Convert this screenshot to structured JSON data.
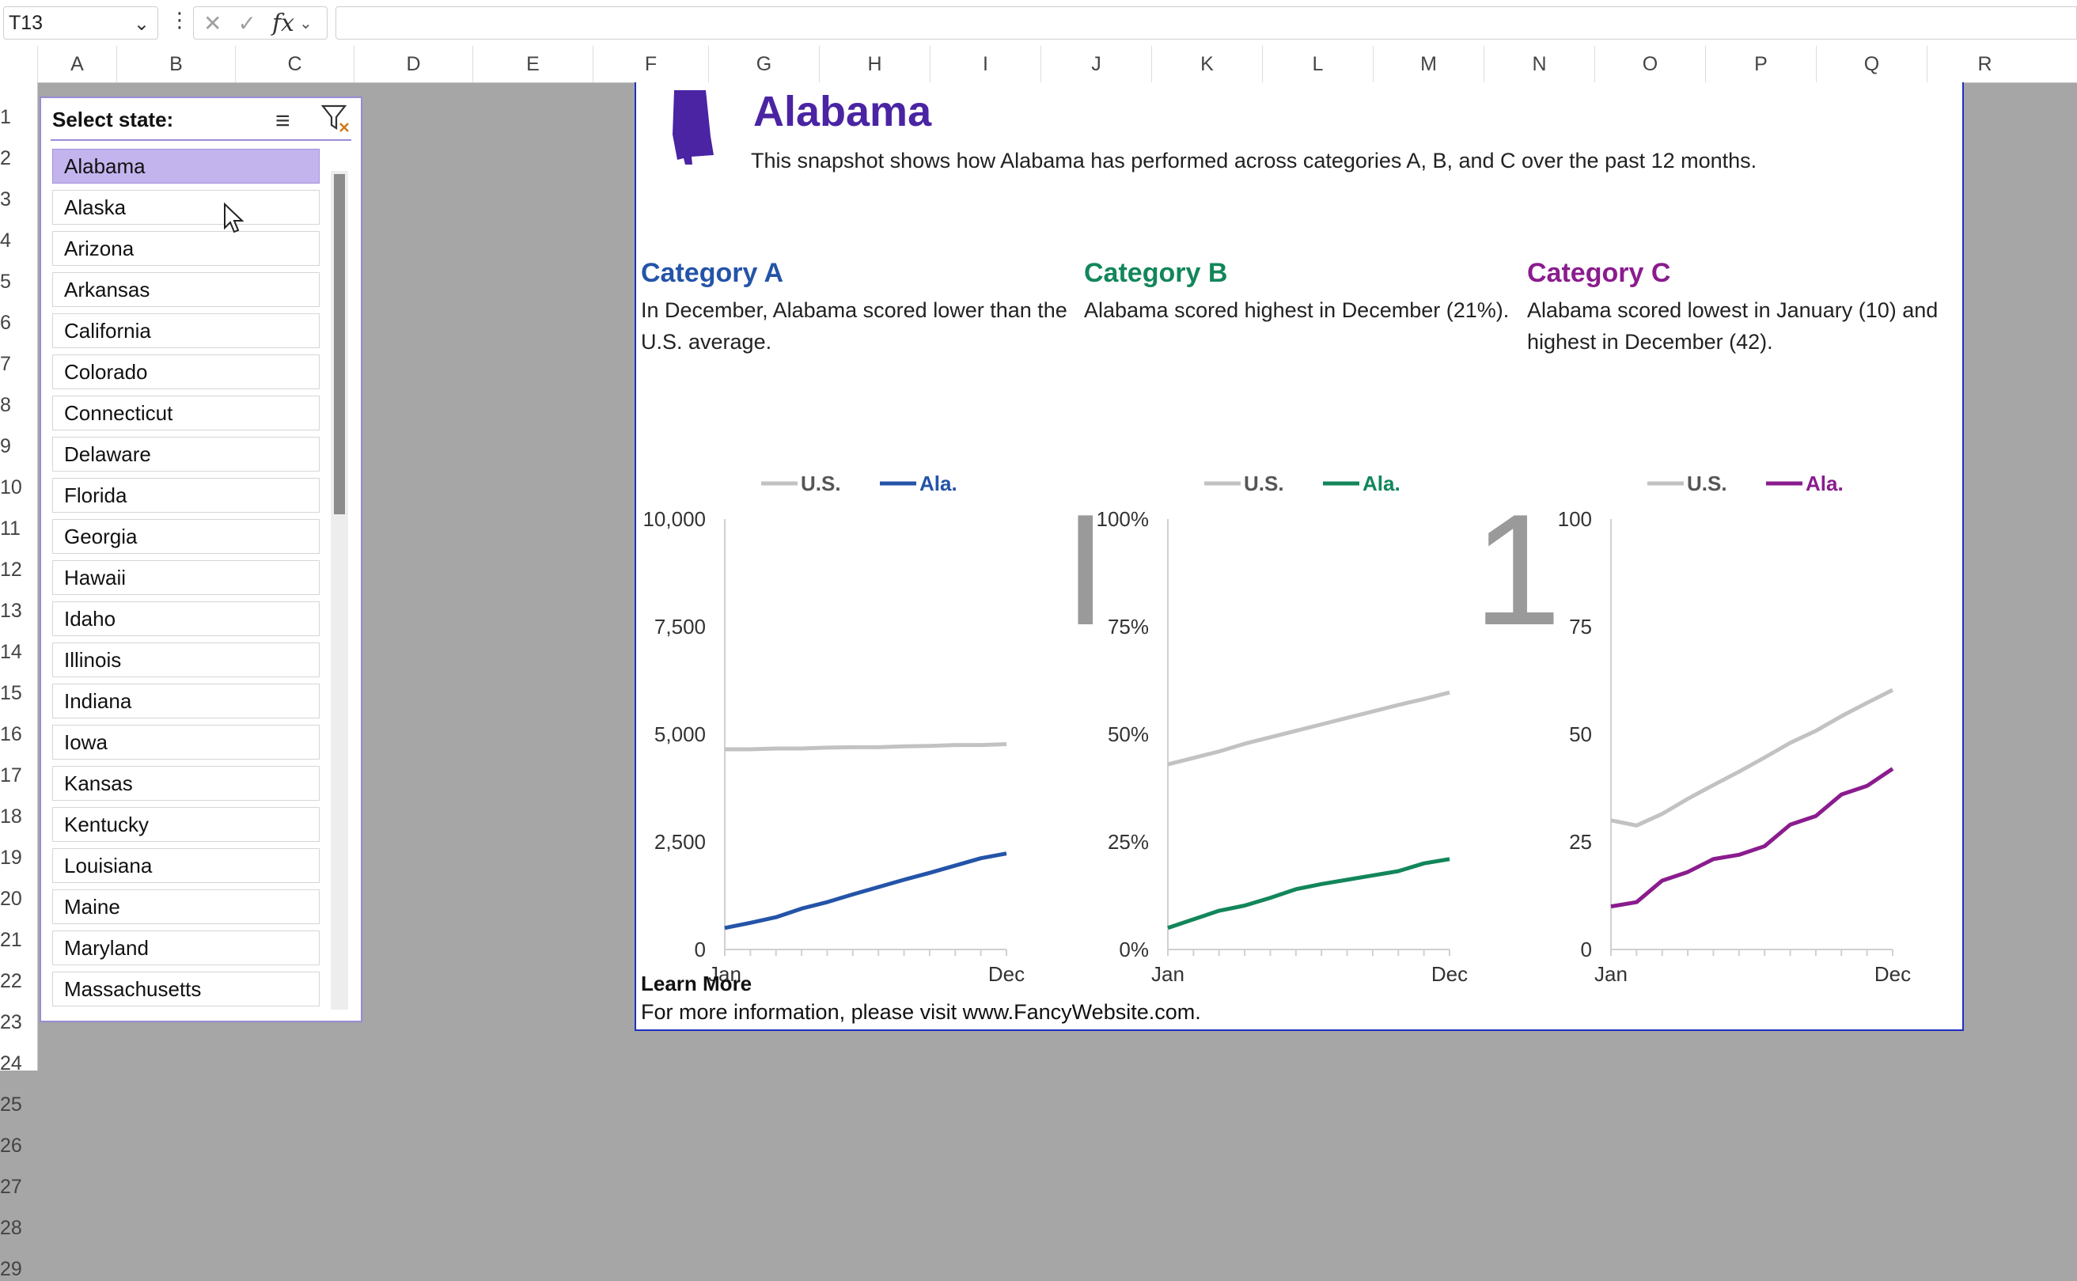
{
  "formula_bar": {
    "name_box": "T13",
    "formula": ""
  },
  "columns": [
    "A",
    "B",
    "C",
    "D",
    "E",
    "F",
    "G",
    "H",
    "I",
    "J",
    "K",
    "L",
    "M",
    "N",
    "O",
    "P",
    "Q",
    "R"
  ],
  "rows": [
    "1",
    "2",
    "3",
    "4",
    "5",
    "6",
    "7",
    "8",
    "9",
    "10",
    "11",
    "12",
    "13",
    "14",
    "15",
    "16",
    "17",
    "18",
    "19",
    "20",
    "21",
    "22",
    "23",
    "24",
    "25",
    "26",
    "27",
    "28",
    "29"
  ],
  "slicer": {
    "title": "Select state:",
    "selected": "Alabama",
    "items": [
      "Alabama",
      "Alaska",
      "Arizona",
      "Arkansas",
      "California",
      "Colorado",
      "Connecticut",
      "Delaware",
      "Florida",
      "Georgia",
      "Hawaii",
      "Idaho",
      "Illinois",
      "Indiana",
      "Iowa",
      "Kansas",
      "Kentucky",
      "Louisiana",
      "Maine",
      "Maryland",
      "Massachusetts"
    ]
  },
  "dashboard": {
    "state_name": "Alabama",
    "subtitle": "This snapshot shows how Alabama has performed across categories A, B, and C over the past 12 months.",
    "glyphs": [
      "I",
      "1"
    ],
    "learn_more_title": "Learn More",
    "learn_more_text": "For more information, please visit www.FancyWebsite.com."
  },
  "colors": {
    "accent": "#4a24a3",
    "category_a": "#2454a8",
    "category_b": "#12865a",
    "category_c": "#8a1c8e",
    "us_line": "#c2c2c2",
    "slicer_selected": "#c4b4ee"
  },
  "categories": [
    {
      "title": "Category A",
      "description": "In December, Alabama scored lower than the U.S. average.",
      "color": "#2454a8"
    },
    {
      "title": "Category B",
      "description": "Alabama scored highest in December (21%).",
      "color": "#12865a"
    },
    {
      "title": "Category C",
      "description": "Alabama scored lowest in January (10) and highest in December (42).",
      "color": "#8a1c8e"
    }
  ],
  "chart_data": [
    {
      "type": "line",
      "title": "Category A",
      "x": [
        "Jan",
        "Feb",
        "Mar",
        "Apr",
        "May",
        "Jun",
        "Jul",
        "Aug",
        "Sep",
        "Oct",
        "Nov",
        "Dec"
      ],
      "x_tick_labels": [
        "Jan",
        "Dec"
      ],
      "y_tick_labels": [
        "10,000",
        "7,500",
        "5,000",
        "2,500",
        "0"
      ],
      "ylim": [
        0,
        10000
      ],
      "legend": "top",
      "series": [
        {
          "name": "U.S.",
          "color": "#c2c2c2",
          "values": [
            4650,
            4650,
            4670,
            4670,
            4690,
            4700,
            4700,
            4720,
            4730,
            4750,
            4750,
            4770
          ]
        },
        {
          "name": "Ala.",
          "color": "#2454a8",
          "values": [
            500,
            620,
            750,
            950,
            1100,
            1280,
            1450,
            1620,
            1780,
            1950,
            2120,
            2230
          ]
        }
      ]
    },
    {
      "type": "line",
      "title": "Category B",
      "x": [
        "Jan",
        "Feb",
        "Mar",
        "Apr",
        "May",
        "Jun",
        "Jul",
        "Aug",
        "Sep",
        "Oct",
        "Nov",
        "Dec"
      ],
      "x_tick_labels": [
        "Jan",
        "Dec"
      ],
      "y_tick_labels": [
        "100%",
        "75%",
        "50%",
        "25%",
        "0%"
      ],
      "ylim": [
        0,
        100
      ],
      "legend": "top",
      "series": [
        {
          "name": "U.S.",
          "color": "#c2c2c2",
          "values": [
            43,
            44.5,
            46,
            47.8,
            49.3,
            50.8,
            52.3,
            53.8,
            55.3,
            56.8,
            58.2,
            59.7
          ]
        },
        {
          "name": "Ala.",
          "color": "#12865a",
          "values": [
            5,
            7,
            9,
            10.2,
            12,
            14,
            15.2,
            16.2,
            17.2,
            18.2,
            20,
            21
          ]
        }
      ]
    },
    {
      "type": "line",
      "title": "Category C",
      "x": [
        "Jan",
        "Feb",
        "Mar",
        "Apr",
        "May",
        "Jun",
        "Jul",
        "Aug",
        "Sep",
        "Oct",
        "Nov",
        "Dec"
      ],
      "x_tick_labels": [
        "Jan",
        "Dec"
      ],
      "y_tick_labels": [
        "100",
        "75",
        "50",
        "25",
        "0"
      ],
      "ylim": [
        0,
        100
      ],
      "legend": "top",
      "series": [
        {
          "name": "U.S.",
          "color": "#c2c2c2",
          "values": [
            30,
            28.8,
            31.5,
            35,
            38.2,
            41.3,
            44.6,
            48,
            50.8,
            54.2,
            57.3,
            60.3
          ]
        },
        {
          "name": "Ala.",
          "color": "#8a1c8e",
          "values": [
            10,
            11,
            16,
            18,
            21,
            22,
            24,
            29,
            31,
            36,
            38,
            42
          ]
        }
      ]
    }
  ]
}
